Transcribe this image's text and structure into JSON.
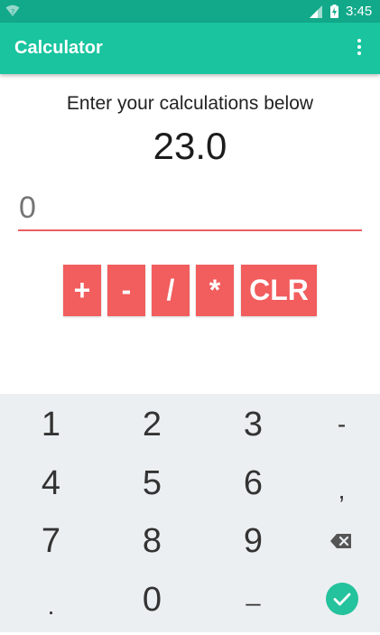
{
  "status_bar": {
    "time": "3:45"
  },
  "app_bar": {
    "title": "Calculator"
  },
  "main": {
    "prompt": "Enter your calculations below",
    "result": "23.0",
    "input_placeholder": "0"
  },
  "operators": {
    "plus": "+",
    "minus": "-",
    "divide": "/",
    "multiply": "*",
    "clear": "CLR"
  },
  "keypad": {
    "k1": "1",
    "k2": "2",
    "k3": "3",
    "minus": "-",
    "k4": "4",
    "k5": "5",
    "k6": "6",
    "comma": ",",
    "k7": "7",
    "k8": "8",
    "k9": "9",
    "period": ".",
    "k0": "0",
    "space": "_"
  },
  "colors": {
    "status_bar": "#12a98a",
    "app_bar": "#19c49f",
    "accent": "#f25d5d",
    "keypad_bg": "#eceff1"
  },
  "icons": [
    "wifi-icon",
    "signal-icon",
    "battery-icon",
    "overflow-menu-icon",
    "backspace-icon",
    "checkmark-icon"
  ]
}
